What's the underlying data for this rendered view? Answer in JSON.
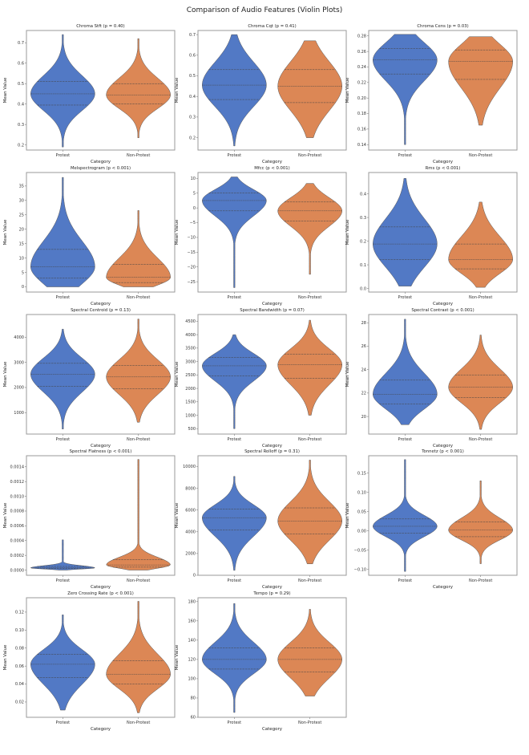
{
  "title": "Comparison of Audio Features (Violin Plots)",
  "colors": {
    "Protest": "#5279c5",
    "Non-Protest": "#dc8755",
    "edge": "#555555",
    "frame": "#9a9a9a"
  },
  "chart_data": [
    {
      "type": "violin",
      "title": "Chroma Stft (p = 0.40)",
      "xlabel": "Category",
      "ylabel": "Mean Value",
      "categories": [
        "Protest",
        "Non-Protest"
      ],
      "ylim": [
        0.175,
        0.76
      ],
      "yticks": [
        0.2,
        0.3,
        0.4,
        0.5,
        0.6,
        0.7
      ],
      "yticklabels": [
        "0.2",
        "0.3",
        "0.4",
        "0.5",
        "0.6",
        "0.7"
      ],
      "series": [
        {
          "name": "Protest",
          "min": 0.19,
          "q1": 0.395,
          "median": 0.45,
          "q3": 0.51,
          "max": 0.74
        },
        {
          "name": "Non-Protest",
          "min": 0.235,
          "q1": 0.4,
          "median": 0.445,
          "q3": 0.5,
          "max": 0.72
        }
      ]
    },
    {
      "type": "violin",
      "title": "Chroma Cqt (p = 0.41)",
      "xlabel": "Category",
      "ylabel": "Mean Value",
      "categories": [
        "Protest",
        "Non-Protest"
      ],
      "ylim": [
        0.14,
        0.72
      ],
      "yticks": [
        0.2,
        0.3,
        0.4,
        0.5,
        0.6,
        0.7
      ],
      "yticklabels": [
        "0.2",
        "0.3",
        "0.4",
        "0.5",
        "0.6",
        "0.7"
      ],
      "series": [
        {
          "name": "Protest",
          "min": 0.16,
          "q1": 0.385,
          "median": 0.455,
          "q3": 0.53,
          "max": 0.7
        },
        {
          "name": "Non-Protest",
          "min": 0.2,
          "q1": 0.37,
          "median": 0.45,
          "q3": 0.53,
          "max": 0.67
        }
      ]
    },
    {
      "type": "violin",
      "title": "Chroma Cens (p = 0.03)",
      "xlabel": "Category",
      "ylabel": "Mean Value",
      "categories": [
        "Protest",
        "Non-Protest"
      ],
      "ylim": [
        0.133,
        0.287
      ],
      "yticks": [
        0.14,
        0.16,
        0.18,
        0.2,
        0.22,
        0.24,
        0.26,
        0.28
      ],
      "yticklabels": [
        "0.14",
        "0.16",
        "0.18",
        "0.20",
        "0.22",
        "0.24",
        "0.26",
        "0.28"
      ],
      "series": [
        {
          "name": "Protest",
          "min": 0.14,
          "q1": 0.231,
          "median": 0.249,
          "q3": 0.264,
          "max": 0.282
        },
        {
          "name": "Non-Protest",
          "min": 0.165,
          "q1": 0.224,
          "median": 0.247,
          "q3": 0.262,
          "max": 0.279
        }
      ]
    },
    {
      "type": "violin",
      "title": "Melspectrogram (p < 0.001)",
      "xlabel": "Category",
      "ylabel": "Mean Value",
      "categories": [
        "Protest",
        "Non-Protest"
      ],
      "ylim": [
        -1.8,
        39.7
      ],
      "yticks": [
        0,
        5,
        10,
        15,
        20,
        25,
        30,
        35
      ],
      "yticklabels": [
        "0",
        "5",
        "10",
        "15",
        "20",
        "25",
        "30",
        "35"
      ],
      "series": [
        {
          "name": "Protest",
          "min": 0,
          "q1": 3,
          "median": 7,
          "q3": 13,
          "max": 38
        },
        {
          "name": "Non-Protest",
          "min": 0,
          "q1": 1.5,
          "median": 3.3,
          "q3": 7.8,
          "max": 26.5
        }
      ]
    },
    {
      "type": "violin",
      "title": "Mfcc (p < 0.001)",
      "xlabel": "Category",
      "ylabel": "Mean Value",
      "categories": [
        "Protest",
        "Non-Protest"
      ],
      "ylim": [
        -28.5,
        12
      ],
      "yticks": [
        -25,
        -20,
        -15,
        -10,
        -5,
        0,
        5,
        10
      ],
      "yticklabels": [
        "−25",
        "−20",
        "−15",
        "−10",
        "−5",
        "0",
        "5",
        "10"
      ],
      "series": [
        {
          "name": "Protest",
          "min": -27,
          "q1": -1,
          "median": 2.5,
          "q3": 5,
          "max": 10.5
        },
        {
          "name": "Non-Protest",
          "min": -22.5,
          "q1": -4.5,
          "median": -1,
          "q3": 2,
          "max": 8.3
        }
      ]
    },
    {
      "type": "violin",
      "title": "Rms (p < 0.001)",
      "xlabel": "Category",
      "ylabel": "Mean Value",
      "categories": [
        "Protest",
        "Non-Protest"
      ],
      "ylim": [
        -0.015,
        0.49
      ],
      "yticks": [
        0,
        0.1,
        0.2,
        0.3,
        0.4
      ],
      "yticklabels": [
        "0.0",
        "0.1",
        "0.2",
        "0.3",
        "0.4"
      ],
      "series": [
        {
          "name": "Protest",
          "min": 0.01,
          "q1": 0.122,
          "median": 0.188,
          "q3": 0.26,
          "max": 0.465
        },
        {
          "name": "Non-Protest",
          "min": 0.005,
          "q1": 0.083,
          "median": 0.123,
          "q3": 0.188,
          "max": 0.365
        }
      ]
    },
    {
      "type": "violin",
      "title": "Spectral Centroid (p = 0.13)",
      "xlabel": "Category",
      "ylabel": "Mean Value",
      "categories": [
        "Protest",
        "Non-Protest"
      ],
      "ylim": [
        150,
        4900
      ],
      "yticks": [
        1000,
        2000,
        3000,
        4000
      ],
      "yticklabels": [
        "1000",
        "2000",
        "3000",
        "4000"
      ],
      "series": [
        {
          "name": "Protest",
          "min": 350,
          "q1": 2050,
          "median": 2530,
          "q3": 2960,
          "max": 4320
        },
        {
          "name": "Non-Protest",
          "min": 620,
          "q1": 1950,
          "median": 2420,
          "q3": 2880,
          "max": 4720
        }
      ]
    },
    {
      "type": "violin",
      "title": "Spectral Bandwidth (p = 0.07)",
      "xlabel": "Category",
      "ylabel": "Mean Value",
      "categories": [
        "Protest",
        "Non-Protest"
      ],
      "ylim": [
        300,
        4750
      ],
      "yticks": [
        500,
        1000,
        1500,
        2000,
        2500,
        3000,
        3500,
        4000,
        4500
      ],
      "yticklabels": [
        "500",
        "1000",
        "1500",
        "2000",
        "2500",
        "3000",
        "3500",
        "4000",
        "4500"
      ],
      "series": [
        {
          "name": "Protest",
          "min": 500,
          "q1": 2460,
          "median": 2840,
          "q3": 3150,
          "max": 4000
        },
        {
          "name": "Non-Protest",
          "min": 1000,
          "q1": 2380,
          "median": 2880,
          "q3": 3280,
          "max": 4540
        }
      ]
    },
    {
      "type": "violin",
      "title": "Spectral Contrast (p < 0.001)",
      "xlabel": "Category",
      "ylabel": "Mean Value",
      "categories": [
        "Protest",
        "Non-Protest"
      ],
      "ylim": [
        18.5,
        28.7
      ],
      "yticks": [
        20,
        22,
        24,
        26,
        28
      ],
      "yticklabels": [
        "20",
        "22",
        "24",
        "26",
        "28"
      ],
      "series": [
        {
          "name": "Protest",
          "min": 19.3,
          "q1": 21.05,
          "median": 21.9,
          "q3": 23.1,
          "max": 28.3
        },
        {
          "name": "Non-Protest",
          "min": 18.9,
          "q1": 21.6,
          "median": 22.5,
          "q3": 23.55,
          "max": 26.95
        }
      ]
    },
    {
      "type": "violin",
      "title": "Spectral Flatness (p < 0.001)",
      "xlabel": "Category",
      "ylabel": "Mean Value",
      "categories": [
        "Protest",
        "Non-Protest"
      ],
      "ylim": [
        -7e-05,
        0.00155
      ],
      "yticks": [
        0,
        0.0002,
        0.0004,
        0.0006,
        0.0008,
        0.001,
        0.0012,
        0.0014
      ],
      "yticklabels": [
        "0.0000",
        "0.0002",
        "0.0004",
        "0.0006",
        "0.0008",
        "0.0010",
        "0.0012",
        "0.0014"
      ],
      "series": [
        {
          "name": "Protest",
          "min": 0,
          "q1": 2e-05,
          "median": 3e-05,
          "q3": 5e-05,
          "max": 0.00041
        },
        {
          "name": "Non-Protest",
          "min": 0,
          "q1": 4e-05,
          "median": 7e-05,
          "q3": 0.00014,
          "max": 0.0015
        }
      ]
    },
    {
      "type": "violin",
      "title": "Spectral Rolloff (p = 0.31)",
      "xlabel": "Category",
      "ylabel": "Mean Value",
      "categories": [
        "Protest",
        "Non-Protest"
      ],
      "ylim": [
        0,
        11000
      ],
      "yticks": [
        0,
        2000,
        4000,
        6000,
        8000,
        10000
      ],
      "yticklabels": [
        "0",
        "2000",
        "4000",
        "6000",
        "8000",
        "10000"
      ],
      "series": [
        {
          "name": "Protest",
          "min": 450,
          "q1": 4150,
          "median": 5300,
          "q3": 6100,
          "max": 9100
        },
        {
          "name": "Non-Protest",
          "min": 1050,
          "q1": 3800,
          "median": 5000,
          "q3": 6200,
          "max": 10600
        }
      ]
    },
    {
      "type": "violin",
      "title": "Tonnetz (p < 0.001)",
      "xlabel": "Category",
      "ylabel": "Mean Value",
      "categories": [
        "Protest",
        "Non-Protest"
      ],
      "ylim": [
        -0.115,
        0.195
      ],
      "yticks": [
        -0.1,
        -0.05,
        0,
        0.05,
        0.1,
        0.15
      ],
      "yticklabels": [
        "−0.10",
        "−0.05",
        "0.00",
        "0.05",
        "0.10",
        "0.15"
      ],
      "series": [
        {
          "name": "Protest",
          "min": -0.105,
          "q1": -0.006,
          "median": 0.012,
          "q3": 0.031,
          "max": 0.185
        },
        {
          "name": "Non-Protest",
          "min": -0.085,
          "q1": -0.015,
          "median": 0.002,
          "q3": 0.023,
          "max": 0.13
        }
      ]
    },
    {
      "type": "violin",
      "title": "Zero Crossing Rate (p < 0.001)",
      "xlabel": "Category",
      "ylabel": "Mean Value",
      "categories": [
        "Protest",
        "Non-Protest"
      ],
      "ylim": [
        0.003,
        0.136
      ],
      "yticks": [
        0.02,
        0.04,
        0.06,
        0.08,
        0.1,
        0.12
      ],
      "yticklabels": [
        "0.02",
        "0.04",
        "0.06",
        "0.08",
        "0.10",
        "0.12"
      ],
      "series": [
        {
          "name": "Protest",
          "min": 0.011,
          "q1": 0.047,
          "median": 0.062,
          "q3": 0.073,
          "max": 0.117
        },
        {
          "name": "Non-Protest",
          "min": 0.008,
          "q1": 0.04,
          "median": 0.051,
          "q3": 0.066,
          "max": 0.132
        }
      ]
    },
    {
      "type": "violin",
      "title": "Tempo (p = 0.29)",
      "xlabel": "Category",
      "ylabel": "Mean Value",
      "categories": [
        "Protest",
        "Non-Protest"
      ],
      "ylim": [
        60,
        184
      ],
      "yticks": [
        60,
        80,
        100,
        120,
        140,
        160,
        180
      ],
      "yticklabels": [
        "60",
        "80",
        "100",
        "120",
        "140",
        "160",
        "180"
      ],
      "series": [
        {
          "name": "Protest",
          "min": 65,
          "q1": 110,
          "median": 120,
          "q3": 132,
          "max": 178
        },
        {
          "name": "Non-Protest",
          "min": 82,
          "q1": 107,
          "median": 120,
          "q3": 132,
          "max": 172
        }
      ]
    }
  ]
}
